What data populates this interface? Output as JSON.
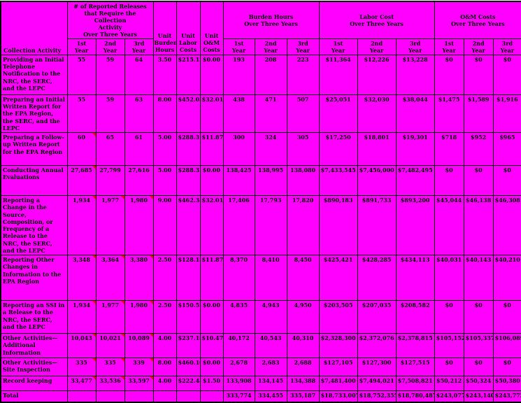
{
  "colors": {
    "cell_background": "#FF00FF",
    "border": "#000000",
    "comment_marker": "#FF0000",
    "page_background": "#FFFFFF"
  },
  "header": {
    "collection_activity": "Collection Activity",
    "releases_group": "# of Reported Releases\nthat Require the Collection\nActivity\nOver Three Years",
    "unit_burden_hours": "Unit\nBurden\nHours",
    "unit_labor_costs": "Unit\nLabor\nCosts",
    "unit_om_costs": "Unit\nO&M\nCosts",
    "burden_hours_group": "Burden Hours\nOver Three Years",
    "labor_cost_group": "Labor Cost\nOver Three Years",
    "om_costs_group": "O&M Costs\nOver Three Years",
    "year_labels": [
      "1st\nYear",
      "2nd\nYear",
      "3rd\nYear"
    ]
  },
  "rows": [
    {
      "activity": "Providing an Initial Telephone Notification to the NRC, the SERC, and the LEPC",
      "releases": [
        "55",
        "59",
        "64"
      ],
      "markers": [
        false,
        false,
        false
      ],
      "unit_burden_hours": "3.50",
      "unit_labor_cost": "$215.13",
      "unit_om_cost": "$0.00",
      "burden_hours": [
        "193",
        "208",
        "223"
      ],
      "labor_cost": [
        "$11,364",
        "$12,226",
        "$13,228"
      ],
      "om_cost": [
        "$0",
        "$0",
        "$0"
      ]
    },
    {
      "activity": "Preparing an Initial Written Report for the EPA Region, the SERC, and the LEPC",
      "releases": [
        "55",
        "59",
        "63"
      ],
      "markers": [
        false,
        false,
        false
      ],
      "unit_burden_hours": "8.00",
      "unit_labor_cost": "$452.05",
      "unit_om_cost": "$32.01",
      "burden_hours": [
        "438",
        "471",
        "507"
      ],
      "labor_cost": [
        "$25,051",
        "$32,030",
        "$38,044"
      ],
      "om_cost": [
        "$1,475",
        "$1,589",
        "$1,916"
      ]
    },
    {
      "activity": "Preparing a Follow-up Written Report for the EPA Region",
      "releases": [
        "60",
        "65",
        "61"
      ],
      "markers": [
        true,
        false,
        false
      ],
      "unit_burden_hours": "5.00",
      "unit_labor_cost": "$288.31",
      "unit_om_cost": "$11.87",
      "burden_hours": [
        "300",
        "324",
        "305"
      ],
      "labor_cost": [
        "$17,250",
        "$18,801",
        "$19,301"
      ],
      "om_cost": [
        "$718",
        "$952",
        "$965"
      ]
    },
    {
      "activity": "Conducting Annual Evaluations",
      "releases": [
        "27,685",
        "27,799",
        "27,616"
      ],
      "markers": [
        true,
        false,
        false
      ],
      "unit_burden_hours": "5.00",
      "unit_labor_cost": "$288.31",
      "unit_om_cost": "$0.00",
      "burden_hours": [
        "138,425",
        "138,995",
        "138,080"
      ],
      "labor_cost": [
        "$7,433,545",
        "$7,456,000",
        "$7,482,495"
      ],
      "om_cost": [
        "$0",
        "$0",
        "$0"
      ]
    },
    {
      "activity": "Reporting a Change in the Source, Composition, or Frequency of a Release to the NRC, the SERC, and the LEPC",
      "releases": [
        "1,934",
        "1,977",
        "1,980"
      ],
      "markers": [
        true,
        true,
        true
      ],
      "unit_burden_hours": "9.00",
      "unit_labor_cost": "$462.34",
      "unit_om_cost": "$32.01",
      "burden_hours": [
        "17,406",
        "17,793",
        "17,820"
      ],
      "labor_cost": [
        "$890,183",
        "$891,733",
        "$893,200"
      ],
      "om_cost": [
        "$45,044",
        "$46,138",
        "$46,308"
      ]
    },
    {
      "activity": "Reporting Other Changes in Information to the EPA Region",
      "releases": [
        "3,348",
        "3,364",
        "3,380"
      ],
      "markers": [
        true,
        true,
        true
      ],
      "unit_burden_hours": "2.50",
      "unit_labor_cost": "$128.13",
      "unit_om_cost": "$11.87",
      "burden_hours": [
        "8,370",
        "8,410",
        "8,450"
      ],
      "labor_cost": [
        "$425,421",
        "$428,285",
        "$434,113"
      ],
      "om_cost": [
        "$40,031",
        "$40,143",
        "$40,210"
      ]
    },
    {
      "activity": "Reporting an SSI in a Release to the NRC, the SERC, and the LEPC",
      "releases": [
        "1,934",
        "1,977",
        "1,980"
      ],
      "markers": [
        true,
        true,
        true
      ],
      "unit_burden_hours": "2.50",
      "unit_labor_cost": "$150.55",
      "unit_om_cost": "$0.00",
      "burden_hours": [
        "4,835",
        "4,943",
        "4,950"
      ],
      "labor_cost": [
        "$203,505",
        "$207,035",
        "$208,582"
      ],
      "om_cost": [
        "$0",
        "$0",
        "$0"
      ]
    },
    {
      "activity": "Other Activities—Additional Information",
      "releases": [
        "10,043",
        "10,021",
        "10,089"
      ],
      "markers": [
        true,
        true,
        true
      ],
      "unit_burden_hours": "4.00",
      "unit_labor_cost": "$237.18",
      "unit_om_cost": "$10.47",
      "burden_hours": [
        "40,172",
        "40,543",
        "40,310"
      ],
      "labor_cost": [
        "$2,328,300",
        "$2,372,076",
        "$2,378,815"
      ],
      "om_cost": [
        "$105,152",
        "$105,337",
        "$106,089"
      ]
    },
    {
      "activity": "Other Activities—Site Inspection",
      "releases": [
        "335",
        "335",
        "339"
      ],
      "markers": [
        true,
        true,
        true
      ],
      "unit_burden_hours": "8.00",
      "unit_labor_cost": "$460.10",
      "unit_om_cost": "$0.00",
      "burden_hours": [
        "2,678",
        "2,683",
        "2,688"
      ],
      "labor_cost": [
        "$127,105",
        "$127,300",
        "$127,515"
      ],
      "om_cost": [
        "$0",
        "$0",
        "$0"
      ]
    },
    {
      "activity": "Record keeping",
      "releases": [
        "33,477",
        "33,536",
        "33,597"
      ],
      "markers": [
        true,
        true,
        true
      ],
      "unit_burden_hours": "4.00",
      "unit_labor_cost": "$222.48",
      "unit_om_cost": "$1.50",
      "burden_hours": [
        "133,908",
        "134,145",
        "134,388"
      ],
      "labor_cost": [
        "$7,481,400",
        "$7,494,021",
        "$7,508,821"
      ],
      "om_cost": [
        "$50,212",
        "$50,324",
        "$50,380"
      ]
    },
    {
      "activity": "Total",
      "releases": [
        "",
        "",
        ""
      ],
      "markers": [
        false,
        false,
        false
      ],
      "unit_burden_hours": "",
      "unit_labor_cost": "",
      "unit_om_cost": "",
      "burden_hours": [
        "333,774",
        "334,455",
        "335,187"
      ],
      "labor_cost": [
        "$18,733,007",
        "$18,752,355",
        "$18,780,487"
      ],
      "om_cost": [
        "$243,077",
        "$243,140",
        "$243,772"
      ]
    }
  ]
}
